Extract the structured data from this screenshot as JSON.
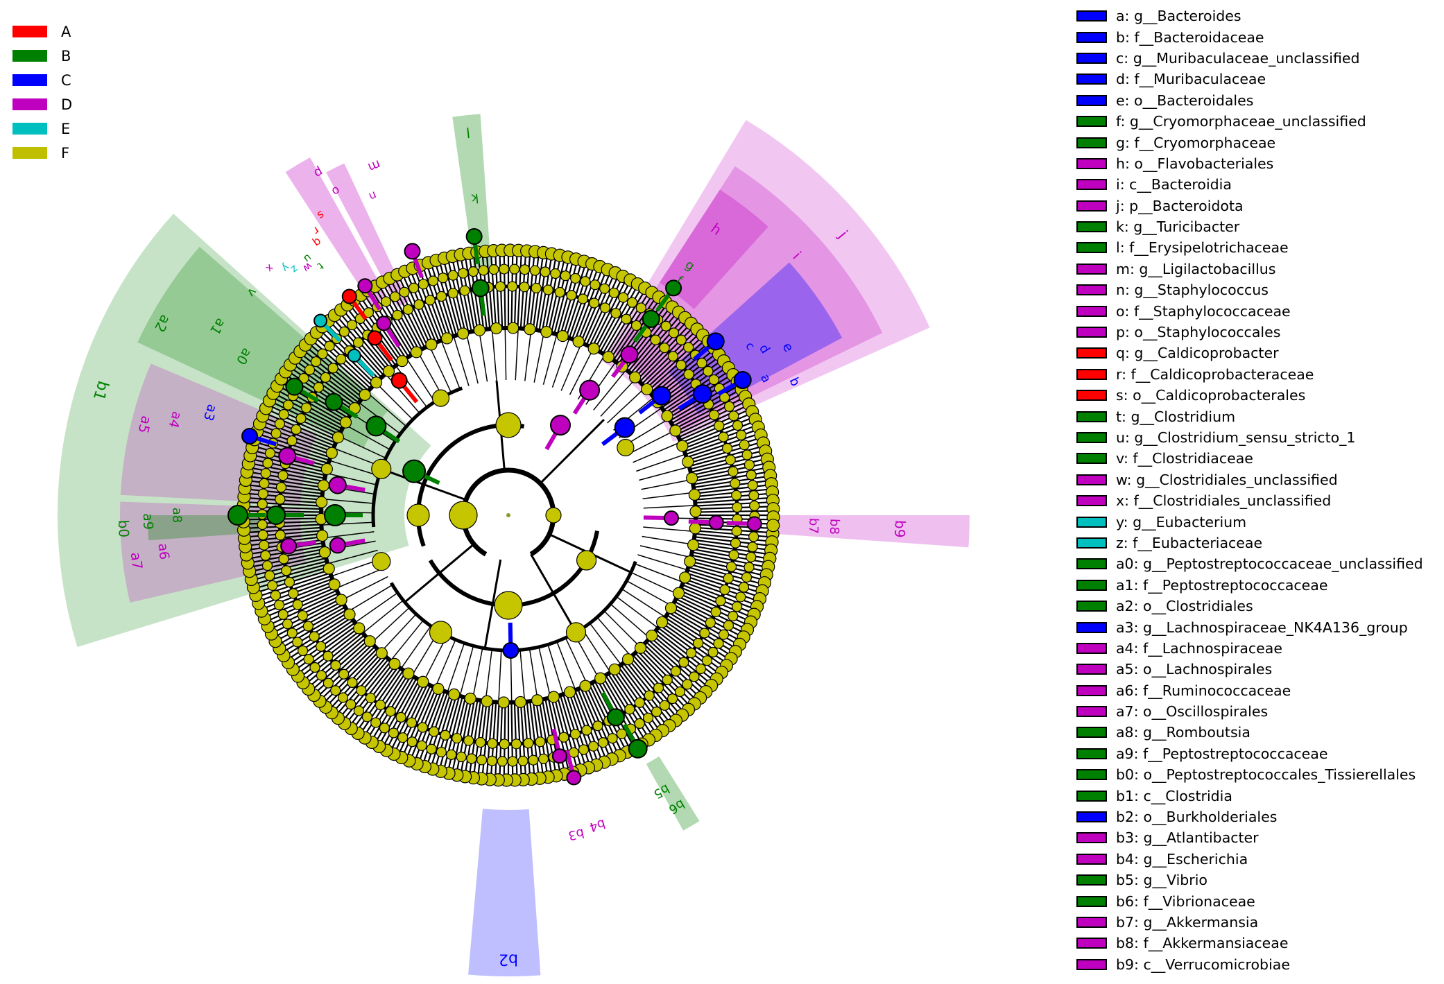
{
  "colors": {
    "A": "#ff0000",
    "B": "#008000",
    "C": "#0000ff",
    "D": "#bf00bf",
    "E": "#00bfbf",
    "F": "#bfbf00",
    "branch": "#000000",
    "node_default": "#c6c600"
  },
  "group_legend": [
    {
      "label": "A",
      "color": "#ff0000"
    },
    {
      "label": "B",
      "color": "#008000"
    },
    {
      "label": "C",
      "color": "#0000ff"
    },
    {
      "label": "D",
      "color": "#bf00bf"
    },
    {
      "label": "E",
      "color": "#00bfbf"
    },
    {
      "label": "F",
      "color": "#bfbf00"
    }
  ],
  "taxa_legend": [
    {
      "code": "a",
      "text": "a: g__Bacteroides",
      "group": "C"
    },
    {
      "code": "b",
      "text": "b: f__Bacteroidaceae",
      "group": "C"
    },
    {
      "code": "c",
      "text": "c: g__Muribaculaceae_unclassified",
      "group": "C"
    },
    {
      "code": "d",
      "text": "d: f__Muribaculaceae",
      "group": "C"
    },
    {
      "code": "e",
      "text": "e: o__Bacteroidales",
      "group": "C"
    },
    {
      "code": "f",
      "text": "f: g__Cryomorphaceae_unclassified",
      "group": "B"
    },
    {
      "code": "g",
      "text": "g: f__Cryomorphaceae",
      "group": "B"
    },
    {
      "code": "h",
      "text": "h: o__Flavobacteriales",
      "group": "D"
    },
    {
      "code": "i",
      "text": "i: c__Bacteroidia",
      "group": "D"
    },
    {
      "code": "j",
      "text": "j: p__Bacteroidota",
      "group": "D"
    },
    {
      "code": "k",
      "text": "k: g__Turicibacter",
      "group": "B"
    },
    {
      "code": "l",
      "text": "l: f__Erysipelotrichaceae",
      "group": "B"
    },
    {
      "code": "m",
      "text": "m: g__Ligilactobacillus",
      "group": "D"
    },
    {
      "code": "n",
      "text": "n: g__Staphylococcus",
      "group": "D"
    },
    {
      "code": "o",
      "text": "o: f__Staphylococcaceae",
      "group": "D"
    },
    {
      "code": "p",
      "text": "p: o__Staphylococcales",
      "group": "D"
    },
    {
      "code": "q",
      "text": "q: g__Caldicoprobacter",
      "group": "A"
    },
    {
      "code": "r",
      "text": "r: f__Caldicoprobacteraceae",
      "group": "A"
    },
    {
      "code": "s",
      "text": "s: o__Caldicoprobacterales",
      "group": "A"
    },
    {
      "code": "t",
      "text": "t: g__Clostridium",
      "group": "B"
    },
    {
      "code": "u",
      "text": "u: g__Clostridium_sensu_stricto_1",
      "group": "B"
    },
    {
      "code": "v",
      "text": "v: f__Clostridiaceae",
      "group": "B"
    },
    {
      "code": "w",
      "text": "w: g__Clostridiales_unclassified",
      "group": "D"
    },
    {
      "code": "x",
      "text": "x: f__Clostridiales_unclassified",
      "group": "D"
    },
    {
      "code": "y",
      "text": "y: g__Eubacterium",
      "group": "E"
    },
    {
      "code": "z",
      "text": "z: f__Eubacteriaceae",
      "group": "E"
    },
    {
      "code": "a0",
      "text": "a0: g__Peptostreptococcaceae_unclassified",
      "group": "B"
    },
    {
      "code": "a1",
      "text": "a1: f__Peptostreptococcaceae",
      "group": "B"
    },
    {
      "code": "a2",
      "text": "a2: o__Clostridiales",
      "group": "B"
    },
    {
      "code": "a3",
      "text": "a3: g__Lachnospiraceae_NK4A136_group",
      "group": "C"
    },
    {
      "code": "a4",
      "text": "a4: f__Lachnospiraceae",
      "group": "D"
    },
    {
      "code": "a5",
      "text": "a5: o__Lachnospirales",
      "group": "D"
    },
    {
      "code": "a6",
      "text": "a6: f__Ruminococcaceae",
      "group": "D"
    },
    {
      "code": "a7",
      "text": "a7: o__Oscillospirales",
      "group": "D"
    },
    {
      "code": "a8",
      "text": "a8: g__Romboutsia",
      "group": "B"
    },
    {
      "code": "a9",
      "text": "a9: f__Peptostreptococcaceae",
      "group": "B"
    },
    {
      "code": "b0",
      "text": "b0: o__Peptostreptococcales_Tissierellales",
      "group": "B"
    },
    {
      "code": "b1",
      "text": "b1: c__Clostridia",
      "group": "B"
    },
    {
      "code": "b2",
      "text": "b2: o__Burkholderiales",
      "group": "C"
    },
    {
      "code": "b3",
      "text": "b3: g__Atlantibacter",
      "group": "D"
    },
    {
      "code": "b4",
      "text": "b4: g__Escherichia",
      "group": "D"
    },
    {
      "code": "b5",
      "text": "b5: g__Vibrio",
      "group": "B"
    },
    {
      "code": "b6",
      "text": "b6: f__Vibrionaceae",
      "group": "B"
    },
    {
      "code": "b7",
      "text": "b7: g__Akkermansia",
      "group": "D"
    },
    {
      "code": "b8",
      "text": "b8: f__Akkermansiaceae",
      "group": "D"
    },
    {
      "code": "b9",
      "text": "b9: c__Verrucomicrobiae",
      "group": "D"
    }
  ]
}
